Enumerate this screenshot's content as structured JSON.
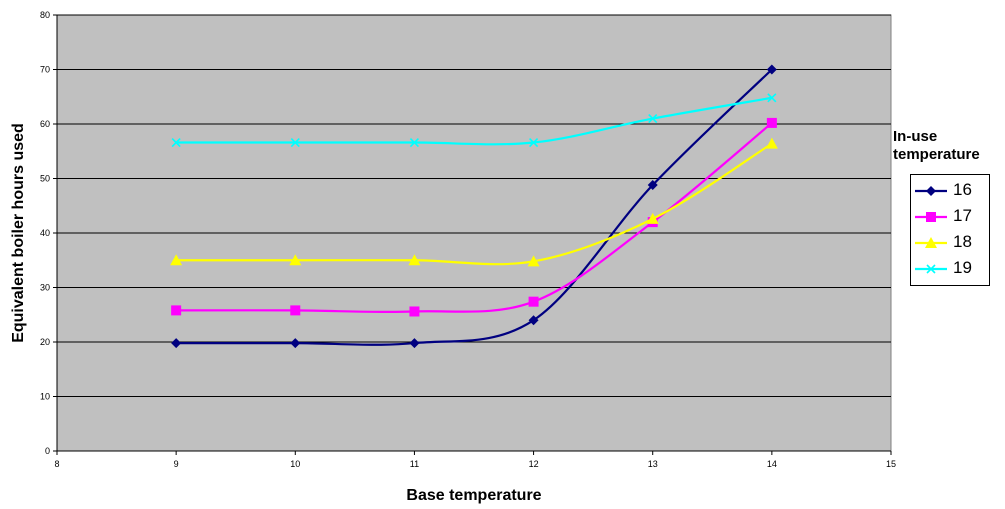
{
  "chart_data": {
    "type": "line",
    "xlabel": "Base temperature",
    "ylabel": "Equivalent boiler hours used",
    "xlim": [
      8,
      15
    ],
    "ylim": [
      0,
      80
    ],
    "x_ticks": [
      8,
      9,
      10,
      11,
      12,
      13,
      14,
      15
    ],
    "y_ticks": [
      0,
      10,
      20,
      30,
      40,
      50,
      60,
      70,
      80
    ],
    "grid": "horizontal",
    "smooth": true,
    "plot_background": "#c0c0c0",
    "legend": {
      "title": "In-use temperature",
      "placement": "right"
    },
    "x": [
      9,
      10,
      11,
      12,
      13,
      14
    ],
    "series": [
      {
        "name": "16",
        "values": [
          19.8,
          19.8,
          19.8,
          24.0,
          48.8,
          70.0
        ],
        "color": "#000080",
        "marker": "diamond"
      },
      {
        "name": "17",
        "values": [
          25.8,
          25.8,
          25.6,
          27.4,
          42.0,
          60.2
        ],
        "color": "#ff00ff",
        "marker": "square"
      },
      {
        "name": "18",
        "values": [
          35.0,
          35.0,
          35.0,
          34.8,
          42.6,
          56.4
        ],
        "color": "#ffff00",
        "marker": "triangle"
      },
      {
        "name": "19",
        "values": [
          56.6,
          56.6,
          56.6,
          56.6,
          61.0,
          64.8
        ],
        "color": "#00ffff",
        "marker": "x"
      }
    ]
  }
}
